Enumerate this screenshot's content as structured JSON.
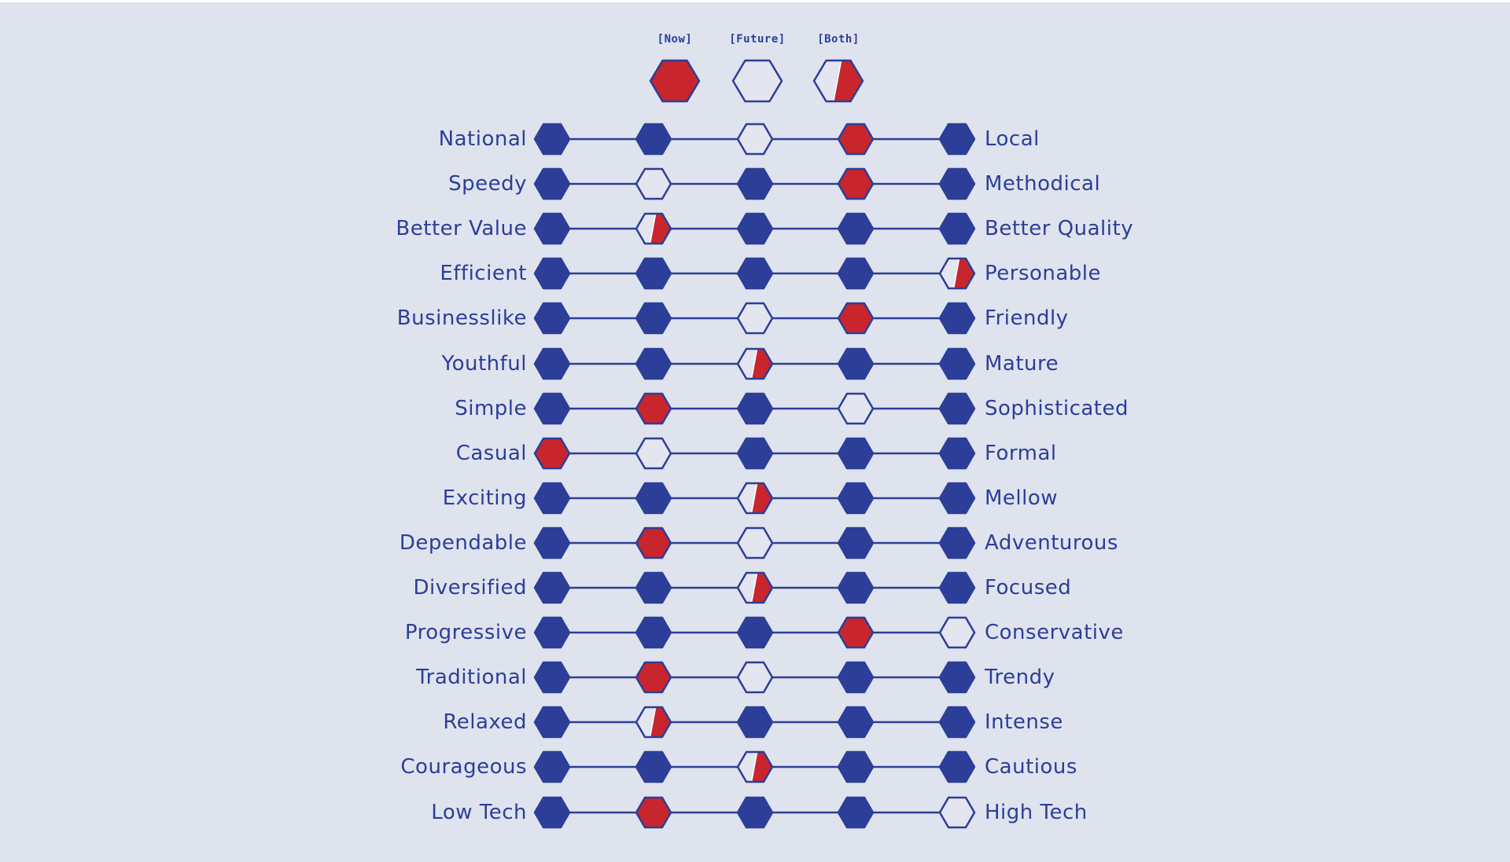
{
  "legend": [
    {
      "label": "[Now]",
      "state": "now"
    },
    {
      "label": "[Future]",
      "state": "future"
    },
    {
      "label": "[Both]",
      "state": "both"
    }
  ],
  "colors": {
    "background": "#dfe3ee",
    "navy": "#2c3e98",
    "red": "#c9252c",
    "light": "#e3e6ee"
  },
  "scale_points": 5,
  "rows": [
    {
      "left": "National",
      "right": "Local",
      "now": 4,
      "future": 3
    },
    {
      "left": "Speedy",
      "right": "Methodical",
      "now": 4,
      "future": 2
    },
    {
      "left": "Better Value",
      "right": "Better Quality",
      "now": 2,
      "future": 2
    },
    {
      "left": "Efficient",
      "right": "Personable",
      "now": 5,
      "future": 5
    },
    {
      "left": "Businesslike",
      "right": "Friendly",
      "now": 4,
      "future": 3
    },
    {
      "left": "Youthful",
      "right": "Mature",
      "now": 3,
      "future": 3
    },
    {
      "left": "Simple",
      "right": "Sophisticated",
      "now": 2,
      "future": 4
    },
    {
      "left": "Casual",
      "right": "Formal",
      "now": 1,
      "future": 2
    },
    {
      "left": "Exciting",
      "right": "Mellow",
      "now": 3,
      "future": 3
    },
    {
      "left": "Dependable",
      "right": "Adventurous",
      "now": 2,
      "future": 3
    },
    {
      "left": "Diversified",
      "right": "Focused",
      "now": 3,
      "future": 3
    },
    {
      "left": "Progressive",
      "right": "Conservative",
      "now": 4,
      "future": 5
    },
    {
      "left": "Traditional",
      "right": "Trendy",
      "now": 2,
      "future": 3
    },
    {
      "left": "Relaxed",
      "right": "Intense",
      "now": 2,
      "future": 2
    },
    {
      "left": "Courageous",
      "right": "Cautious",
      "now": 3,
      "future": 3
    },
    {
      "left": "Low Tech",
      "right": "High Tech",
      "now": 2,
      "future": 5
    }
  ]
}
